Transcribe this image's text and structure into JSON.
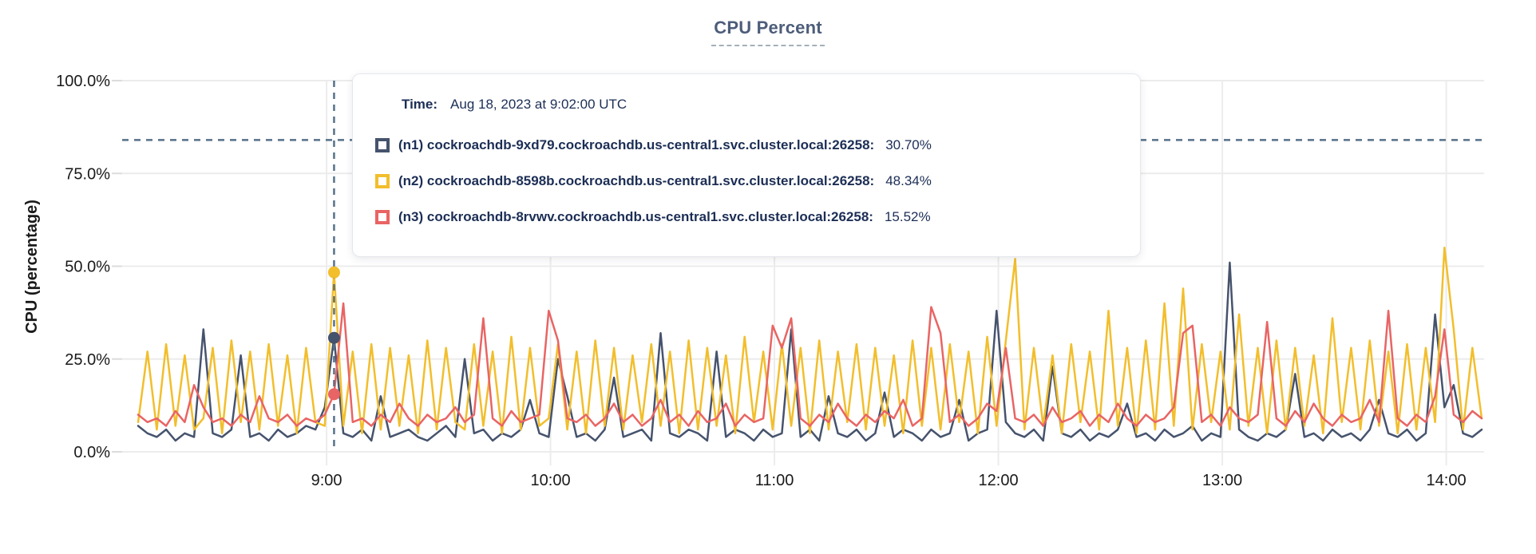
{
  "chart_data": {
    "type": "line",
    "title": "CPU Percent",
    "ylabel": "CPU (percentage)",
    "xlabel": "",
    "grid": true,
    "legend_position": "tooltip",
    "time_step_minutes": 2.5,
    "axis": {
      "x": {
        "domain_minutes": [
          489.5,
          849.5
        ],
        "ticks": [
          {
            "m": 540,
            "label": "9:00"
          },
          {
            "m": 600,
            "label": "10:00"
          },
          {
            "m": 660,
            "label": "11:00"
          },
          {
            "m": 720,
            "label": "12:00"
          },
          {
            "m": 780,
            "label": "13:00"
          },
          {
            "m": 840,
            "label": "14:00"
          }
        ]
      },
      "y": {
        "domain": [
          0,
          100
        ],
        "ticks": [
          {
            "v": 0,
            "label": "0.0%"
          },
          {
            "v": 25,
            "label": "25.0%"
          },
          {
            "v": 50,
            "label": "50.0%"
          },
          {
            "v": 75,
            "label": "75.0%"
          },
          {
            "v": 100,
            "label": "100.0%"
          }
        ]
      }
    },
    "series": [
      {
        "id": "n1",
        "name": "(n1) cockroachdb-9xd79.cockroachdb.us-central1.svc.cluster.local:26258",
        "color": "#46536d",
        "values": [
          7,
          5,
          4,
          6,
          3,
          5,
          4,
          33,
          5,
          4,
          6,
          26,
          4,
          5,
          3,
          6,
          4,
          5,
          7,
          6,
          12,
          30.7,
          5,
          4,
          6,
          3,
          15,
          4,
          5,
          6,
          4,
          3,
          5,
          7,
          4,
          25,
          5,
          6,
          3,
          5,
          4,
          6,
          14,
          5,
          4,
          25,
          15,
          4,
          5,
          3,
          6,
          20,
          4,
          5,
          6,
          3,
          32,
          5,
          4,
          6,
          5,
          3,
          27,
          4,
          6,
          5,
          3,
          6,
          4,
          5,
          33,
          4,
          6,
          3,
          15,
          5,
          4,
          6,
          3,
          5,
          16,
          4,
          6,
          5,
          3,
          6,
          4,
          5,
          14,
          3,
          5,
          6,
          38,
          8,
          5,
          4,
          6,
          3,
          23,
          5,
          4,
          6,
          3,
          5,
          4,
          6,
          13,
          4,
          5,
          3,
          6,
          4,
          5,
          7,
          3,
          5,
          4,
          51,
          6,
          4,
          3,
          5,
          4,
          6,
          21,
          4,
          5,
          3,
          6,
          4,
          5,
          3,
          6,
          14,
          5,
          4,
          6,
          3,
          5,
          37,
          12,
          18,
          5,
          4,
          6
        ]
      },
      {
        "id": "n2",
        "name": "(n2) cockroachdb-8598b.cockroachdb.us-central1.svc.cluster.local:26258",
        "color": "#f2be2c",
        "values": [
          8,
          27,
          6,
          29,
          7,
          26,
          6,
          9,
          28,
          5,
          30,
          8,
          27,
          6,
          29,
          7,
          26,
          5,
          28,
          8,
          7,
          48.34,
          7,
          27,
          5,
          29,
          6,
          28,
          7,
          26,
          5,
          30,
          6,
          28,
          8,
          6,
          29,
          7,
          27,
          5,
          31,
          6,
          28,
          7,
          9,
          29,
          6,
          27,
          5,
          30,
          7,
          28,
          6,
          26,
          8,
          29,
          7,
          27,
          5,
          30,
          6,
          28,
          7,
          26,
          5,
          31,
          8,
          27,
          6,
          29,
          7,
          28,
          5,
          30,
          6,
          27,
          8,
          29,
          6,
          28,
          7,
          26,
          5,
          30,
          7,
          28,
          6,
          29,
          8,
          27,
          5,
          31,
          7,
          30,
          52,
          6,
          28,
          7,
          26,
          5,
          29,
          8,
          27,
          6,
          38,
          7,
          28,
          5,
          30,
          6,
          40,
          7,
          44,
          6,
          29,
          8,
          27,
          6,
          37,
          7,
          28,
          5,
          30,
          6,
          28,
          7,
          26,
          5,
          36,
          8,
          28,
          6,
          30,
          7,
          27,
          5,
          29,
          6,
          28,
          8,
          55,
          33,
          6,
          28,
          9
        ]
      },
      {
        "id": "n3",
        "name": "(n3) cockroachdb-8rvwv.cockroachdb.us-central1.svc.cluster.local:26258",
        "color": "#e96464",
        "values": [
          10,
          8,
          9,
          7,
          11,
          8,
          18,
          12,
          8,
          9,
          7,
          10,
          8,
          15,
          9,
          8,
          10,
          7,
          9,
          8,
          10,
          15.52,
          40,
          8,
          9,
          7,
          10,
          8,
          13,
          9,
          7,
          10,
          8,
          9,
          12,
          8,
          10,
          36,
          9,
          7,
          11,
          8,
          9,
          10,
          38,
          30,
          9,
          8,
          10,
          7,
          9,
          13,
          8,
          10,
          7,
          9,
          14,
          8,
          10,
          7,
          11,
          8,
          9,
          13,
          7,
          10,
          8,
          9,
          34,
          28,
          36,
          9,
          7,
          10,
          8,
          13,
          9,
          7,
          10,
          8,
          11,
          9,
          14,
          7,
          9,
          39,
          32,
          8,
          10,
          7,
          9,
          13,
          11,
          28,
          9,
          8,
          10,
          7,
          12,
          8,
          9,
          11,
          7,
          10,
          8,
          13,
          9,
          7,
          10,
          8,
          9,
          12,
          32,
          34,
          8,
          10,
          7,
          12,
          9,
          8,
          10,
          35,
          9,
          7,
          11,
          8,
          13,
          9,
          7,
          10,
          8,
          9,
          14,
          8,
          38,
          9,
          7,
          10,
          8,
          15,
          33,
          10,
          8,
          11,
          9
        ]
      }
    ],
    "hover": {
      "index": 21,
      "time_minutes": 542,
      "crosshair_y_percent": 84,
      "crosshair_color": "#56718a"
    },
    "colors": {
      "grid": "#ececec",
      "axis_text": "#1a1a1a",
      "title": "#4d5d7a",
      "tooltip_text": "#1c2e55"
    }
  },
  "tooltip": {
    "time_label": "Time:",
    "time_value": "Aug 18, 2023 at 9:02:00 UTC",
    "rows": [
      {
        "label": "(n1) cockroachdb-9xd79.cockroachdb.us-central1.svc.cluster.local:26258:",
        "value": "30.70%"
      },
      {
        "label": "(n2) cockroachdb-8598b.cockroachdb.us-central1.svc.cluster.local:26258:",
        "value": "48.34%"
      },
      {
        "label": "(n3) cockroachdb-8rvwv.cockroachdb.us-central1.svc.cluster.local:26258:",
        "value": "15.52%"
      }
    ]
  }
}
